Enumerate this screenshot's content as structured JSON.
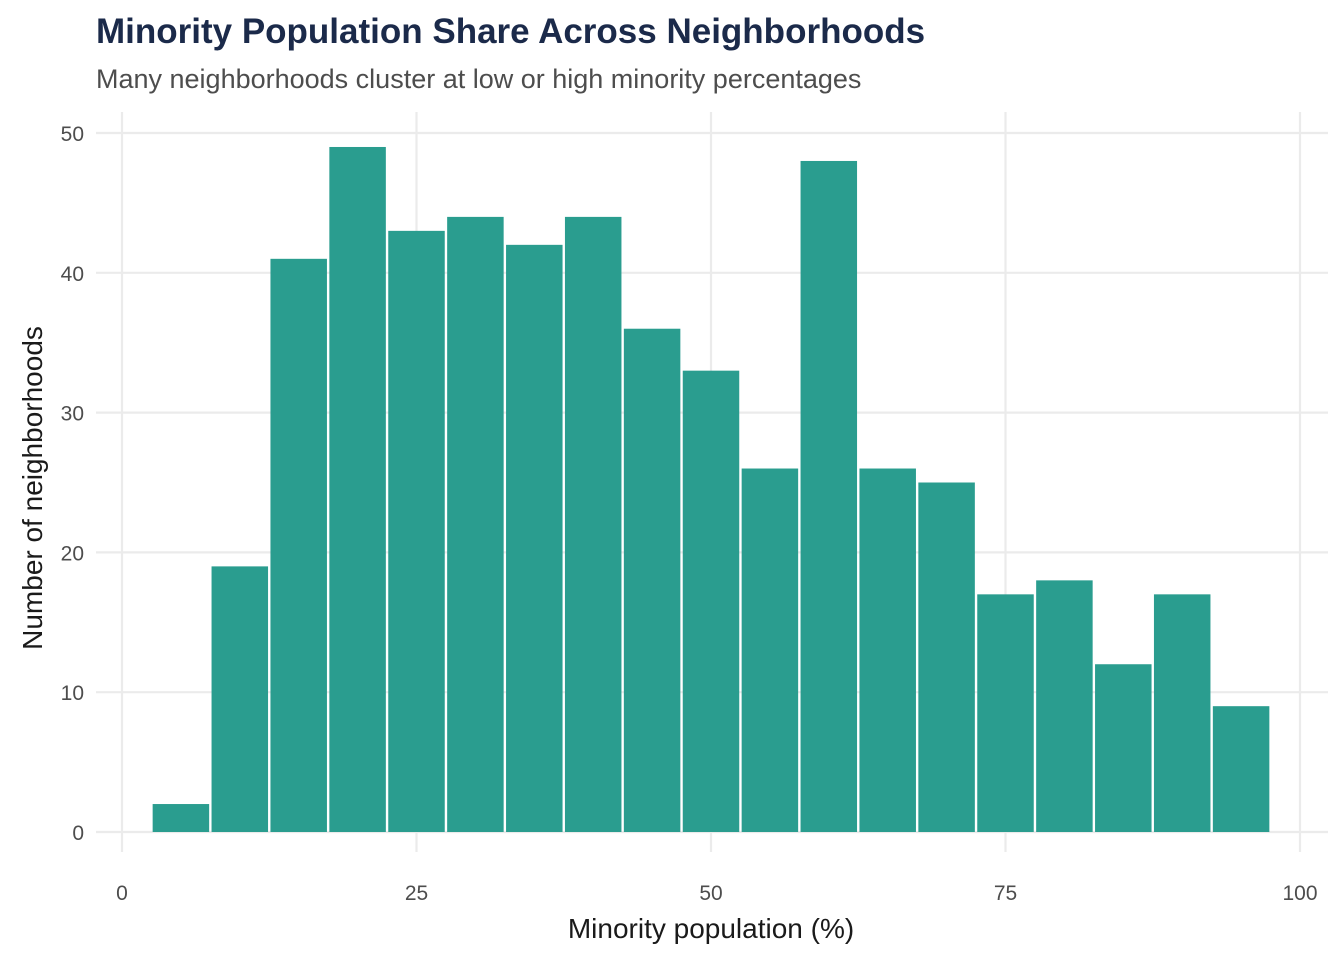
{
  "chart_data": {
    "type": "bar",
    "subtype": "histogram",
    "title": "Minority Population Share Across Neighborhoods",
    "subtitle": "Many neighborhoods cluster at low or high minority percentages",
    "xlabel": "Minority population (%)",
    "ylabel": "Number of neighborhoods",
    "xlim": [
      0,
      100
    ],
    "ylim": [
      0,
      50
    ],
    "xticks": [
      0,
      25,
      50,
      75,
      100
    ],
    "yticks": [
      0,
      10,
      20,
      30,
      40,
      50
    ],
    "grid": true,
    "bin_width": 5,
    "bin_centers": [
      5,
      10,
      15,
      20,
      25,
      30,
      35,
      40,
      45,
      50,
      55,
      60,
      65,
      70,
      75,
      80,
      85,
      90,
      95
    ],
    "values": [
      2,
      19,
      41,
      49,
      43,
      44,
      42,
      44,
      36,
      33,
      26,
      48,
      26,
      25,
      17,
      18,
      12,
      17,
      9
    ],
    "bar_color": "#2a9d8f",
    "legend": "none"
  }
}
